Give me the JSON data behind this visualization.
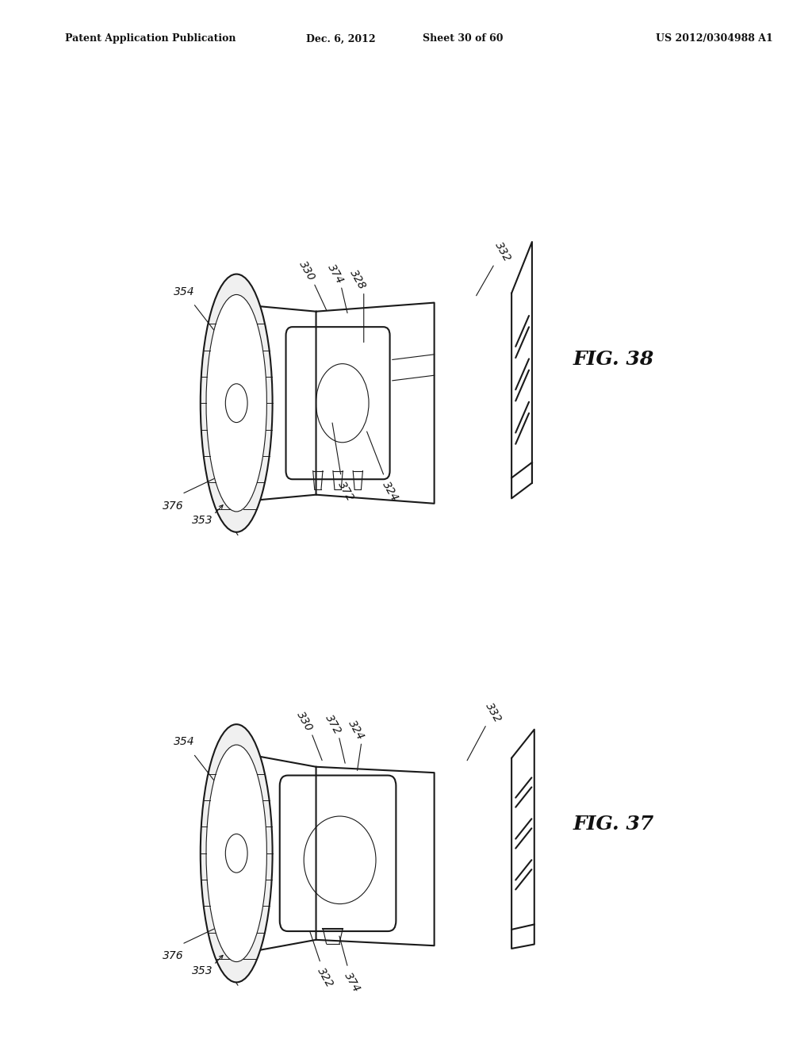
{
  "background_color": "#ffffff",
  "header_text": "Patent Application Publication",
  "header_date": "Dec. 6, 2012",
  "header_sheet": "Sheet 30 of 60",
  "header_patent": "US 2012/0304988 A1",
  "fig38_label": "FIG. 38",
  "fig37_label": "FIG. 37"
}
